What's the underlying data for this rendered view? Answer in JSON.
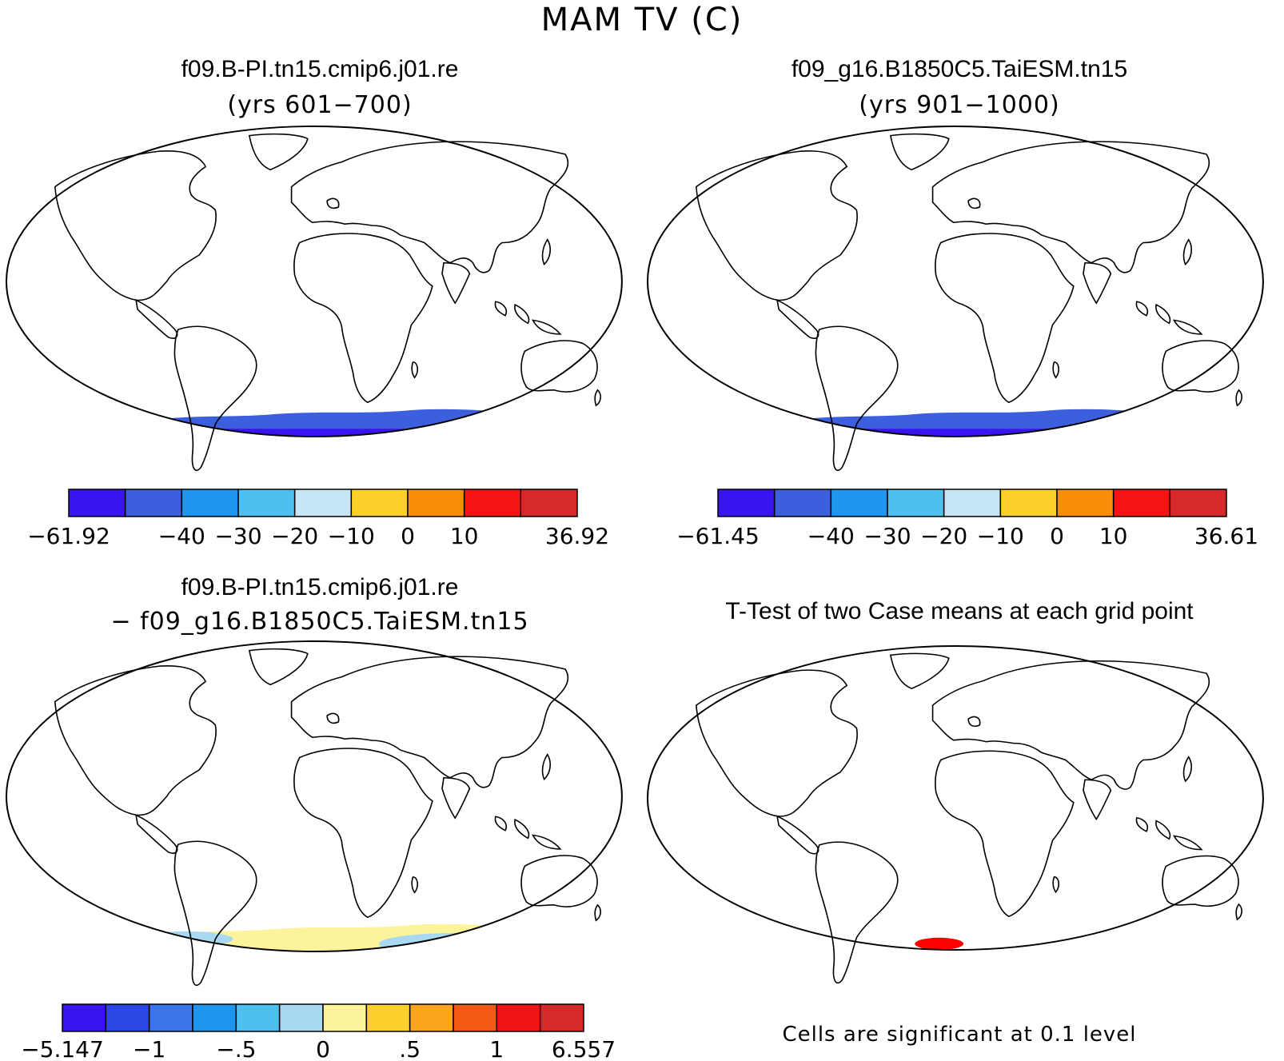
{
  "title": "MAM TV (C)",
  "panels": {
    "top_left": {
      "title": "f09.B-PI.tn15.cmip6.j01.re",
      "subtitle": "(yrs 601−700)",
      "colorbar": {
        "colors": [
          "#3a14f0",
          "#3c5fdd",
          "#1f96ee",
          "#4ec0ef",
          "#c6e6f6",
          "#fbd02a",
          "#fb8c08",
          "#f51414",
          "#d52a2a"
        ],
        "labels": [
          "−61.92",
          "−40",
          "−30",
          "−20",
          "−10",
          "0",
          "10",
          "36.92"
        ]
      }
    },
    "top_right": {
      "title": "f09_g16.B1850C5.TaiESM.tn15",
      "subtitle": "(yrs 901−1000)",
      "colorbar": {
        "colors": [
          "#3a14f0",
          "#3c5fdd",
          "#1f96ee",
          "#4ec0ef",
          "#c6e6f6",
          "#fbd02a",
          "#fb8c08",
          "#f51414",
          "#d52a2a"
        ],
        "labels": [
          "−61.45",
          "−40",
          "−30",
          "−20",
          "−10",
          "0",
          "10",
          "36.61"
        ]
      }
    },
    "bottom_left": {
      "title": "f09.B-PI.tn15.cmip6.j01.re",
      "subtitle": "− f09_g16.B1850C5.TaiESM.tn15",
      "colorbar": {
        "colors": [
          "#3a14f0",
          "#2d47e6",
          "#3a76e8",
          "#1f96ee",
          "#4ec0ef",
          "#a9d9f2",
          "#fdf39a",
          "#fbd02a",
          "#fba51e",
          "#f55a14",
          "#f01414",
          "#d52a2a"
        ],
        "labels": [
          "−5.147",
          "−1",
          "−.5",
          "0",
          ".5",
          "1",
          "6.557"
        ]
      }
    },
    "bottom_right": {
      "title": "T-Test of two Case means at each grid point",
      "note": "Cells are significant at 0.1 level"
    }
  }
}
